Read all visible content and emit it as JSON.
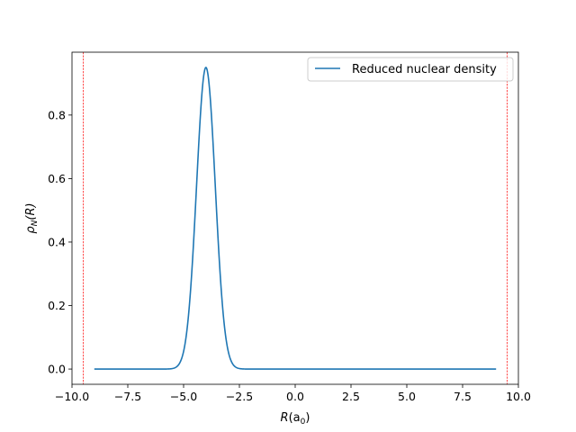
{
  "chart_data": {
    "type": "line",
    "title": "",
    "xlabel": {
      "main": "R",
      "paren_open": "(a",
      "sub": "0",
      "paren_close": ")"
    },
    "ylabel": {
      "rho": "ρ",
      "sub": "N",
      "rest": "(R)"
    },
    "xlim": [
      -10.0,
      10.0
    ],
    "ylim": [
      -0.048,
      0.998
    ],
    "xticks": [
      -10.0,
      -7.5,
      -5.0,
      -2.5,
      0.0,
      2.5,
      5.0,
      7.5,
      10.0
    ],
    "xtick_labels": [
      "−10.0",
      "−7.5",
      "−5.0",
      "−2.5",
      "0.0",
      "2.5",
      "5.0",
      "7.5",
      "10.0"
    ],
    "yticks": [
      0.0,
      0.2,
      0.4,
      0.6,
      0.8
    ],
    "ytick_labels": [
      "0.0",
      "0.2",
      "0.4",
      "0.6",
      "0.8"
    ],
    "grid": false,
    "legend_position": "top-right",
    "series": [
      {
        "name": "Reduced nuclear density",
        "color": "#1f77b4",
        "x_range": [
          -9.0,
          9.0
        ],
        "peak_x": -4.0,
        "peak_y": 0.95,
        "width_sigma": 0.42
      }
    ],
    "vlines": [
      {
        "x": -9.5,
        "color": "#ff0000",
        "style": "dashed"
      },
      {
        "x": 9.5,
        "color": "#ff0000",
        "style": "dashed"
      }
    ]
  }
}
